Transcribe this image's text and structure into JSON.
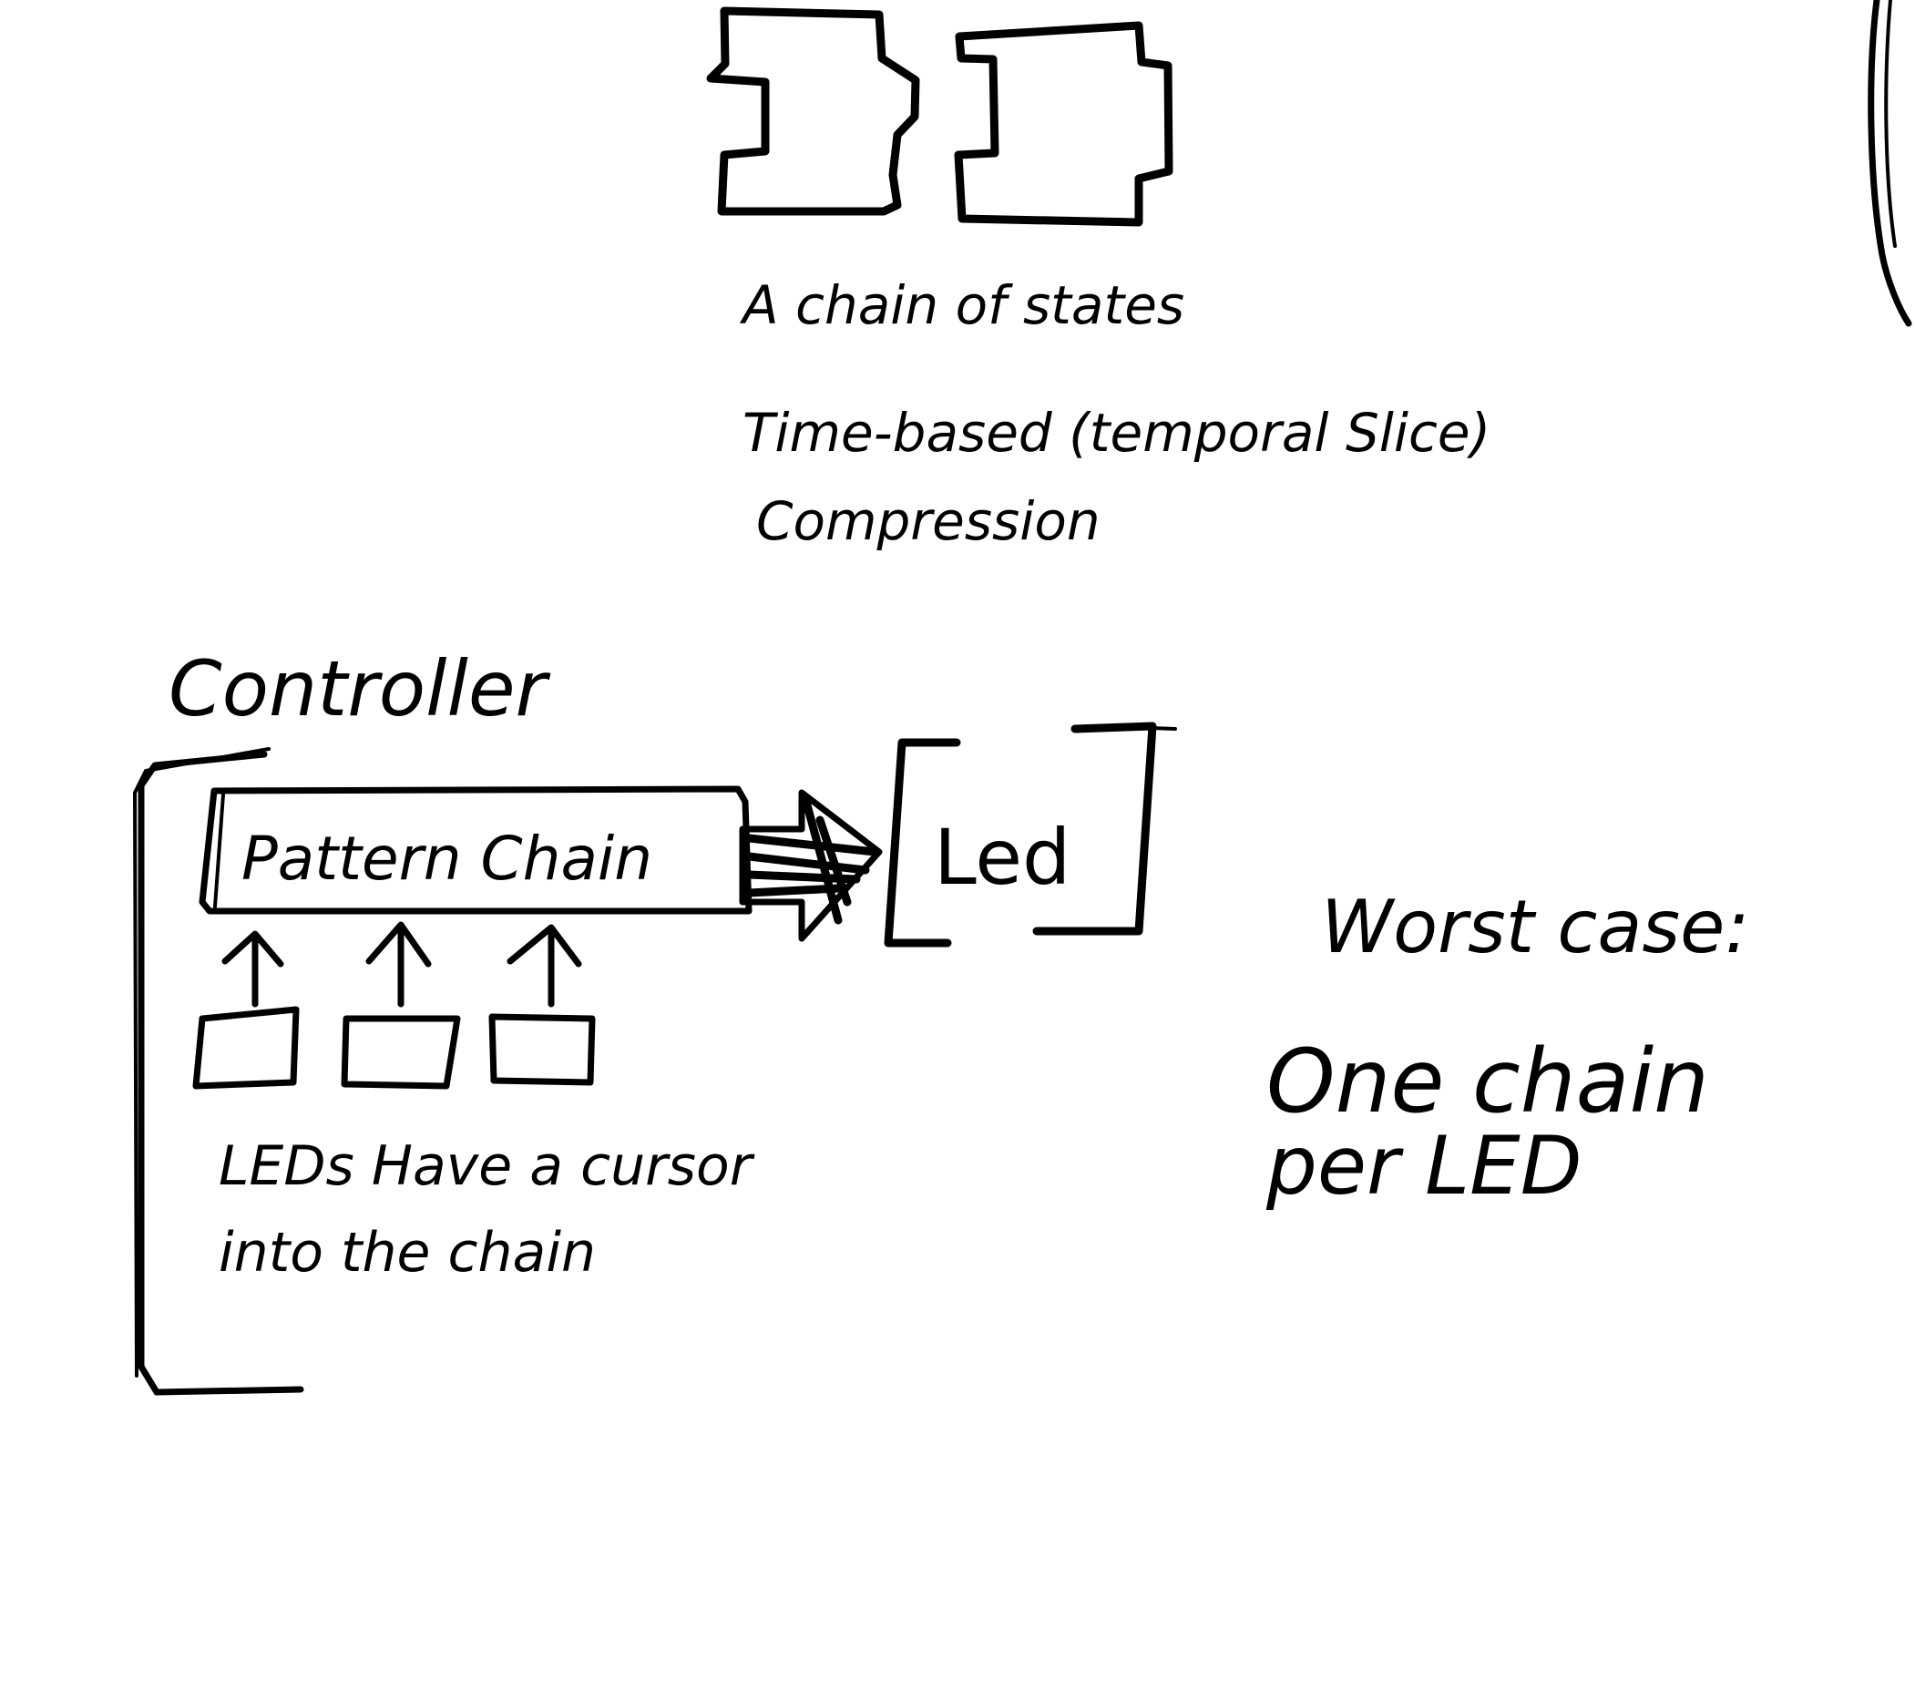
{
  "top": {
    "caption_line_1": "A chain of states",
    "caption_line_2": "Time-based (temporal Slice)",
    "caption_line_3": "Compression"
  },
  "controller": {
    "title": "Controller",
    "pattern_chain_label": "Pattern Chain",
    "led_label": "Led",
    "cursor_note_line_1": "LEDs Have a cursor",
    "cursor_note_line_2": "into the chain"
  },
  "worst_case": {
    "heading": "Worst case:",
    "line_1": "One chain",
    "line_2": "per LED"
  },
  "colors": {
    "ink": "#000000",
    "paper": "#ffffff"
  }
}
